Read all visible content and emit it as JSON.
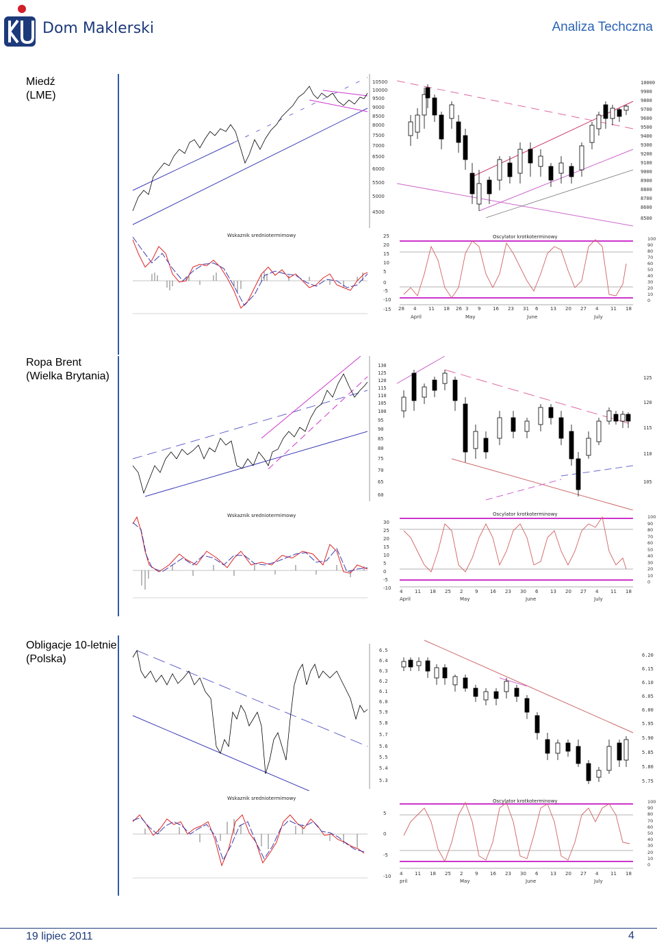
{
  "header": {
    "brand": "Dom Maklerski",
    "section": "Analiza Techczna"
  },
  "sections": [
    {
      "label_line1": "Miedź",
      "label_line2": "(LME)",
      "long_axis": [
        "10500",
        "10000",
        "9500",
        "9000",
        "8500",
        "8000",
        "7500",
        "7000",
        "6500",
        "6000",
        "5500",
        "5000",
        "4500"
      ],
      "short_axis": [
        "10000",
        "9900",
        "9800",
        "9700",
        "9600",
        "9500",
        "9400",
        "9300",
        "9200",
        "9100",
        "9000",
        "8900",
        "8800",
        "8700",
        "8600",
        "8500"
      ],
      "indicator_title": "Wskaznik sredniotermimowy",
      "indicator_axis": [
        "25",
        "20",
        "15",
        "10",
        "5",
        "0",
        "-5",
        "-10",
        "-15"
      ],
      "oscillator_title": "Oscylator krotkoterminowy",
      "oscillator_axis": [
        "100",
        "90",
        "80",
        "70",
        "60",
        "50",
        "40",
        "30",
        "20",
        "10",
        "0"
      ],
      "day_ticks": [
        "28",
        "4",
        "11",
        "18",
        "26",
        "3",
        "9",
        "16",
        "23",
        "31",
        "6",
        "13",
        "20",
        "27",
        "4",
        "11",
        "18"
      ],
      "month_ticks": [
        "April",
        "May",
        "June",
        "July"
      ]
    },
    {
      "label_line1": "Ropa Brent",
      "label_line2": "(Wielka Brytania)",
      "long_axis": [
        "130",
        "125",
        "120",
        "115",
        "110",
        "105",
        "100",
        "95",
        "90",
        "85",
        "80",
        "75",
        "70",
        "65",
        "60"
      ],
      "short_axis": [
        "125",
        "120",
        "115",
        "110",
        "105"
      ],
      "indicator_title": "Wskaznik sredniotermimowy",
      "indicator_axis": [
        "30",
        "25",
        "20",
        "15",
        "10",
        "5",
        "0",
        "-5",
        "-10"
      ],
      "oscillator_title": "Oscylator krotkoterminowy",
      "oscillator_axis": [
        "100",
        "90",
        "80",
        "70",
        "60",
        "50",
        "40",
        "30",
        "20",
        "10",
        "0"
      ],
      "day_ticks": [
        "4",
        "11",
        "18",
        "25",
        "2",
        "9",
        "16",
        "23",
        "30",
        "6",
        "13",
        "20",
        "27",
        "4",
        "11",
        "18"
      ],
      "month_ticks": [
        "April",
        "May",
        "June",
        "July"
      ]
    },
    {
      "label_line1": "Obligacje 10-letnie",
      "label_line2": "(Polska)",
      "long_axis": [
        "6.5",
        "6.4",
        "6.3",
        "6.2",
        "6.1",
        "6.0",
        "5.9",
        "5.8",
        "5.7",
        "5.6",
        "5.5",
        "5.4",
        "5.3"
      ],
      "short_axis": [
        "6.20",
        "6.15",
        "6.10",
        "6.05",
        "6.00",
        "5.95",
        "5.90",
        "5.85",
        "5.80",
        "5.75"
      ],
      "indicator_title": "Wskaznik sredniotermimowy",
      "indicator_axis": [
        "5",
        "0",
        "-5",
        "-10"
      ],
      "oscillator_title": "Oscylator krotkoterminowy",
      "oscillator_axis": [
        "100",
        "90",
        "80",
        "70",
        "60",
        "50",
        "40",
        "30",
        "20",
        "10",
        "0"
      ],
      "day_ticks": [
        "4",
        "11",
        "18",
        "25",
        "2",
        "9",
        "16",
        "23",
        "30",
        "6",
        "13",
        "20",
        "27",
        "4",
        "11",
        "18"
      ],
      "month_ticks": [
        "pril",
        "May",
        "June",
        "July"
      ]
    }
  ],
  "footer": {
    "date": "19 lipiec 2011",
    "page": "4"
  }
}
